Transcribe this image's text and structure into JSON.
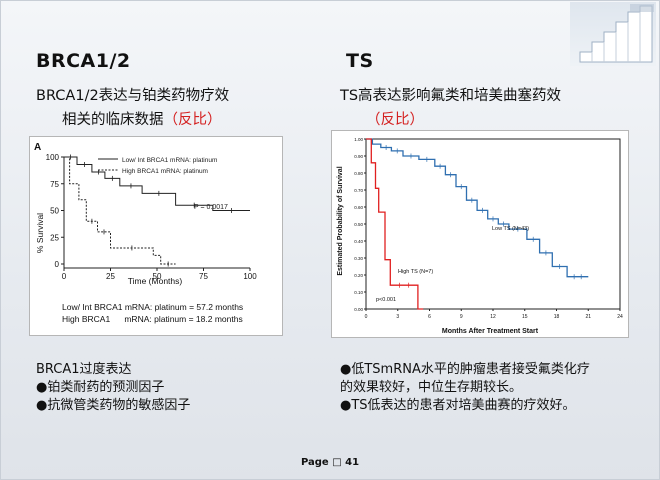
{
  "left": {
    "heading": "BRCA1/2",
    "subtitle_line1": "BRCA1/2表达与铂类药物疗效",
    "subtitle_line2": "相关的临床数据",
    "subtitle_tag": "（反比）",
    "bullets": {
      "intro": "BRCA1过度表达",
      "items": [
        "●铂类耐药的预测因子",
        "●抗微管类药物的敏感因子"
      ]
    }
  },
  "right": {
    "heading": "TS",
    "subtitle_line1": "TS高表达影响氟类和培美曲塞药效",
    "subtitle_tag": "（反比）",
    "bullets": {
      "items": [
        "●低TSmRNA水平的肿瘤患者接受氟类化疗",
        "的效果较好，中位生存期较长。",
        "●TS低表达的患者对培美曲赛的疗效好。"
      ]
    }
  },
  "footer": {
    "page_label": "Page ",
    "box_glyph": "□",
    "page_number": " 41"
  },
  "colors": {
    "accent_red": "#d42020",
    "ts_low": "#2f6fb0",
    "ts_high": "#e02020"
  },
  "chart_data": [
    {
      "type": "line",
      "panel_label": "A",
      "xlabel": "Time (Months)",
      "ylabel": "% Survival",
      "xlim": [
        0,
        100
      ],
      "ylim": [
        0,
        100
      ],
      "xticks": [
        0,
        25,
        50,
        75,
        100
      ],
      "yticks": [
        0,
        25,
        50,
        75,
        100
      ],
      "grid": false,
      "legend_position": "top-right",
      "annotation": "P = 0.0017",
      "notes": [
        "Low/ Int BRCA1 mRNA: platinum = 57.2 months",
        "High BRCA1      mRNA: platinum = 18.2 months"
      ],
      "series": [
        {
          "name": "Low/ Int BRCA1 mRNA: platinum",
          "style": "solid",
          "x": [
            0,
            7,
            7,
            15,
            15,
            22,
            22,
            30,
            30,
            42,
            42,
            60,
            60,
            80,
            80,
            100
          ],
          "y": [
            100,
            100,
            93,
            93,
            86,
            86,
            80,
            80,
            73,
            73,
            66,
            66,
            55,
            55,
            50,
            50
          ]
        },
        {
          "name": "High BRCA1 mRNA: platinum",
          "style": "dashed",
          "x": [
            0,
            3,
            3,
            8,
            8,
            12,
            12,
            18,
            18,
            25,
            25,
            48,
            48,
            52,
            52,
            60
          ],
          "y": [
            100,
            100,
            75,
            75,
            60,
            60,
            40,
            40,
            30,
            30,
            15,
            15,
            8,
            8,
            0,
            0
          ]
        }
      ]
    },
    {
      "type": "line",
      "xlabel": "Months  After Treatment Start",
      "ylabel": "Estimated Probability of Survival",
      "xlim": [
        0,
        24
      ],
      "ylim": [
        0,
        1
      ],
      "xticks": [
        0,
        3,
        6,
        9,
        12,
        15,
        18,
        21,
        24
      ],
      "yticks": [
        0,
        0.1,
        0.2,
        0.3,
        0.4,
        0.5,
        0.6,
        0.7,
        0.8,
        0.9,
        1.0
      ],
      "ytick_labels": [
        "0.00",
        "0.10",
        "0.20",
        "0.30",
        "0.40",
        "0.50",
        "0.60",
        "0.70",
        "0.80",
        "0.90",
        "1.00"
      ],
      "grid": false,
      "annotation": "p<0.001",
      "series": [
        {
          "name": "Low TS (N=43)",
          "color": "#2f6fb0",
          "x": [
            0,
            0.6,
            0.6,
            1.4,
            1.4,
            2.4,
            2.4,
            3.5,
            3.5,
            5.0,
            5.0,
            6.5,
            6.5,
            7.5,
            7.5,
            8.5,
            8.5,
            9.5,
            9.5,
            10.5,
            10.5,
            11.5,
            11.5,
            12.5,
            12.5,
            13.5,
            13.5,
            15.2,
            15.2,
            16.4,
            16.4,
            17.6,
            17.6,
            19.0,
            19.0,
            21.0
          ],
          "y": [
            1.0,
            1.0,
            0.97,
            0.97,
            0.95,
            0.95,
            0.93,
            0.93,
            0.9,
            0.9,
            0.88,
            0.88,
            0.84,
            0.84,
            0.79,
            0.79,
            0.72,
            0.72,
            0.64,
            0.64,
            0.58,
            0.58,
            0.53,
            0.53,
            0.5,
            0.5,
            0.47,
            0.47,
            0.41,
            0.41,
            0.33,
            0.33,
            0.25,
            0.25,
            0.19,
            0.19
          ]
        },
        {
          "name": "High TS (N=7)",
          "color": "#e02020",
          "x": [
            0,
            0.5,
            0.5,
            0.9,
            0.9,
            1.2,
            1.2,
            1.8,
            1.8,
            2.3,
            2.3,
            4.9,
            4.9,
            5.4
          ],
          "y": [
            1.0,
            1.0,
            0.86,
            0.86,
            0.71,
            0.71,
            0.57,
            0.57,
            0.29,
            0.29,
            0.14,
            0.14,
            0.0,
            0.0
          ]
        }
      ]
    }
  ]
}
